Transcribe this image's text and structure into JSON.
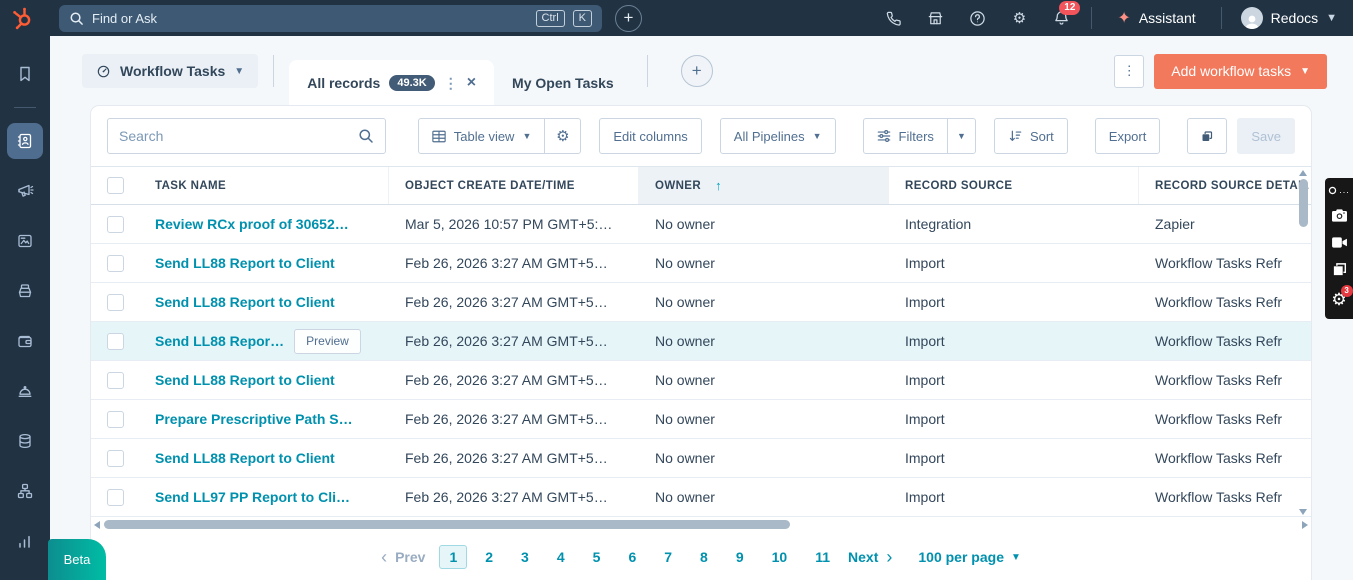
{
  "topnav": {
    "search_placeholder": "Find or Ask",
    "shortcut_ctrl": "Ctrl",
    "shortcut_k": "K",
    "notification_count": "12",
    "assistant_label": "Assistant",
    "account_name": "Redocs"
  },
  "sidebar": {
    "icons": [
      "bookmarks",
      "crm",
      "marketing",
      "content",
      "sales",
      "commerce",
      "service",
      "data",
      "automations",
      "reporting"
    ],
    "active_icon": "crm",
    "beta_label": "Beta"
  },
  "tabbar": {
    "collection_label": "Workflow Tasks",
    "tabs": [
      {
        "label": "All records",
        "count": "49.3K",
        "active": true
      },
      {
        "label": "My Open Tasks",
        "active": false
      }
    ],
    "add_button_label": "Add workflow tasks"
  },
  "toolbar": {
    "search_placeholder": "Search",
    "table_view_label": "Table view",
    "edit_columns_label": "Edit columns",
    "all_pipelines_label": "All Pipelines",
    "filters_label": "Filters",
    "sort_label": "Sort",
    "export_label": "Export",
    "save_label": "Save"
  },
  "table": {
    "columns": [
      {
        "label": "TASK NAME"
      },
      {
        "label": "OBJECT CREATE DATE/TIME"
      },
      {
        "label": "OWNER",
        "sorted": "asc"
      },
      {
        "label": "RECORD SOURCE"
      },
      {
        "label": "RECORD SOURCE DETAIL"
      }
    ],
    "preview_label": "Preview",
    "rows": [
      {
        "task": "Review RCx proof of 30652…",
        "date": "Mar 5, 2026 10:57 PM GMT+5:…",
        "owner": "No owner",
        "source": "Integration",
        "detail": "Zapier"
      },
      {
        "task": "Send LL88 Report to Client",
        "date": "Feb 26, 2026 3:27 AM GMT+5…",
        "owner": "No owner",
        "source": "Import",
        "detail": "Workflow Tasks Refr"
      },
      {
        "task": "Send LL88 Report to Client",
        "date": "Feb 26, 2026 3:27 AM GMT+5…",
        "owner": "No owner",
        "source": "Import",
        "detail": "Workflow Tasks Refr"
      },
      {
        "task": "Send LL88 Repor…",
        "preview": true,
        "hovered": true,
        "date": "Feb 26, 2026 3:27 AM GMT+5…",
        "owner": "No owner",
        "source": "Import",
        "detail": "Workflow Tasks Refr"
      },
      {
        "task": "Send LL88 Report to Client",
        "date": "Feb 26, 2026 3:27 AM GMT+5…",
        "owner": "No owner",
        "source": "Import",
        "detail": "Workflow Tasks Refr"
      },
      {
        "task": "Prepare Prescriptive Path S…",
        "date": "Feb 26, 2026 3:27 AM GMT+5…",
        "owner": "No owner",
        "source": "Import",
        "detail": "Workflow Tasks Refr"
      },
      {
        "task": "Send LL88 Report to Client",
        "date": "Feb 26, 2026 3:27 AM GMT+5…",
        "owner": "No owner",
        "source": "Import",
        "detail": "Workflow Tasks Refr"
      },
      {
        "task": "Send LL97 PP Report to Cli…",
        "date": "Feb 26, 2026 3:27 AM GMT+5…",
        "owner": "No owner",
        "source": "Import",
        "detail": "Workflow Tasks Refr"
      }
    ]
  },
  "pagination": {
    "prev_label": "Prev",
    "pages": [
      "1",
      "2",
      "3",
      "4",
      "5",
      "6",
      "7",
      "8",
      "9",
      "10",
      "11"
    ],
    "current_page": "1",
    "next_label": "Next",
    "per_page_label": "100 per page"
  },
  "overlay": {
    "badge_count": "3",
    "menu_dots": "..."
  },
  "colors": {
    "navy": "#213343",
    "orange_cta": "#f2795c",
    "link_teal": "#0091ae",
    "sort_teal": "#00a4bd",
    "badge_red": "#f2545b",
    "row_hover": "#e5f5f8",
    "beta_gradient_start": "#0d8d8f",
    "beta_gradient_end": "#00bda5"
  }
}
